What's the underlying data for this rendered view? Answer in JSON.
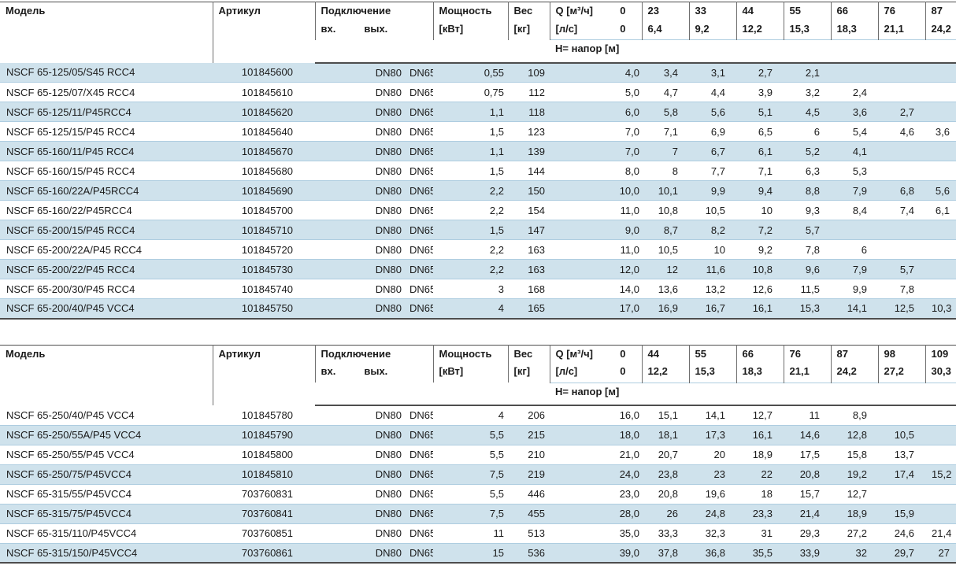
{
  "colors": {
    "row_alt": "#cfe2ec",
    "row_sep": "#aecde0",
    "rule": "#4d4d4d",
    "grid": "#6e6e6e",
    "text": "#1a1a1a"
  },
  "tables": [
    {
      "headers": {
        "model": "Модель",
        "article": "Артикул",
        "connection": "Подключение",
        "inlet": "вх.",
        "outlet": "вых.",
        "power_line1": "Мощность",
        "power_line2": "[кВт]",
        "weight_line1": "Вес",
        "weight_line2": "[кг]",
        "q_label": "Q [м³/ч]",
        "q_zero": "0",
        "ls_label": "[л/с]",
        "ls_zero": "0",
        "head_row_label": "H= напор [м]",
        "q_values": [
          "23",
          "33",
          "44",
          "55",
          "66",
          "76",
          "87"
        ],
        "ls_values": [
          "6,4",
          "9,2",
          "12,2",
          "15,3",
          "18,3",
          "21,1",
          "24,2"
        ]
      },
      "rows": [
        {
          "model": "NSCF 65-125/05/S45 RCC4",
          "article": "101845600",
          "inlet": "DN80",
          "outlet": "DN65",
          "power": "0,55",
          "weight": "109",
          "h": [
            "4,0",
            "3,4",
            "3,1",
            "2,7",
            "2,1",
            "",
            "",
            ""
          ]
        },
        {
          "model": "NSCF 65-125/07/X45 RCC4",
          "article": "101845610",
          "inlet": "DN80",
          "outlet": "DN65",
          "power": "0,75",
          "weight": "112",
          "h": [
            "5,0",
            "4,7",
            "4,4",
            "3,9",
            "3,2",
            "2,4",
            "",
            ""
          ]
        },
        {
          "model": "NSCF 65-125/11/P45RCC4",
          "article": "101845620",
          "inlet": "DN80",
          "outlet": "DN65",
          "power": "1,1",
          "weight": "118",
          "h": [
            "6,0",
            "5,8",
            "5,6",
            "5,1",
            "4,5",
            "3,6",
            "2,7",
            ""
          ]
        },
        {
          "model": "NSCF 65-125/15/P45 RCC4",
          "article": "101845640",
          "inlet": "DN80",
          "outlet": "DN65",
          "power": "1,5",
          "weight": "123",
          "h": [
            "7,0",
            "7,1",
            "6,9",
            "6,5",
            "6",
            "5,4",
            "4,6",
            "3,6"
          ]
        },
        {
          "model": "NSCF 65-160/11/P45 RCC4",
          "article": "101845670",
          "inlet": "DN80",
          "outlet": "DN65",
          "power": "1,1",
          "weight": "139",
          "h": [
            "7,0",
            "7",
            "6,7",
            "6,1",
            "5,2",
            "4,1",
            "",
            ""
          ]
        },
        {
          "model": "NSCF 65-160/15/P45 RCC4",
          "article": "101845680",
          "inlet": "DN80",
          "outlet": "DN65",
          "power": "1,5",
          "weight": "144",
          "h": [
            "8,0",
            "8",
            "7,7",
            "7,1",
            "6,3",
            "5,3",
            "",
            ""
          ]
        },
        {
          "model": "NSCF 65-160/22A/P45RCC4",
          "article": "101845690",
          "inlet": "DN80",
          "outlet": "DN65",
          "power": "2,2",
          "weight": "150",
          "h": [
            "10,0",
            "10,1",
            "9,9",
            "9,4",
            "8,8",
            "7,9",
            "6,8",
            "5,6"
          ]
        },
        {
          "model": "NSCF 65-160/22/P45RCC4",
          "article": "101845700",
          "inlet": "DN80",
          "outlet": "DN65",
          "power": "2,2",
          "weight": "154",
          "h": [
            "11,0",
            "10,8",
            "10,5",
            "10",
            "9,3",
            "8,4",
            "7,4",
            "6,1"
          ]
        },
        {
          "model": "NSCF 65-200/15/P45 RCC4",
          "article": "101845710",
          "inlet": "DN80",
          "outlet": "DN65",
          "power": "1,5",
          "weight": "147",
          "h": [
            "9,0",
            "8,7",
            "8,2",
            "7,2",
            "5,7",
            "",
            "",
            ""
          ]
        },
        {
          "model": "NSCF 65-200/22A/P45 RCC4",
          "article": "101845720",
          "inlet": "DN80",
          "outlet": "DN65",
          "power": "2,2",
          "weight": "163",
          "h": [
            "11,0",
            "10,5",
            "10",
            "9,2",
            "7,8",
            "6",
            "",
            ""
          ]
        },
        {
          "model": "NSCF 65-200/22/P45 RCC4",
          "article": "101845730",
          "inlet": "DN80",
          "outlet": "DN65",
          "power": "2,2",
          "weight": "163",
          "h": [
            "12,0",
            "12",
            "11,6",
            "10,8",
            "9,6",
            "7,9",
            "5,7",
            ""
          ]
        },
        {
          "model": "NSCF 65-200/30/P45 RCC4",
          "article": "101845740",
          "inlet": "DN80",
          "outlet": "DN65",
          "power": "3",
          "weight": "168",
          "h": [
            "14,0",
            "13,6",
            "13,2",
            "12,6",
            "11,5",
            "9,9",
            "7,8",
            ""
          ]
        },
        {
          "model": "NSCF 65-200/40/P45 VCC4",
          "article": "101845750",
          "inlet": "DN80",
          "outlet": "DN65",
          "power": "4",
          "weight": "165",
          "h": [
            "17,0",
            "16,9",
            "16,7",
            "16,1",
            "15,3",
            "14,1",
            "12,5",
            "10,3"
          ]
        }
      ]
    },
    {
      "headers": {
        "model": "Модель",
        "article": "Артикул",
        "connection": "Подключение",
        "inlet": "вх.",
        "outlet": "вых.",
        "power_line1": "Мощность",
        "power_line2": "[кВт]",
        "weight_line1": "Вес",
        "weight_line2": "[кг]",
        "q_label": "Q [м³/ч]",
        "q_zero": "0",
        "ls_label": "[л/с]",
        "ls_zero": "0",
        "head_row_label": "H= напор [м]",
        "q_values": [
          "44",
          "55",
          "66",
          "76",
          "87",
          "98",
          "109"
        ],
        "ls_values": [
          "12,2",
          "15,3",
          "18,3",
          "21,1",
          "24,2",
          "27,2",
          "30,3"
        ]
      },
      "rows": [
        {
          "model": "NSCF 65-250/40/P45 VCC4",
          "article": "101845780",
          "inlet": "DN80",
          "outlet": "DN65",
          "power": "4",
          "weight": "206",
          "h": [
            "16,0",
            "15,1",
            "14,1",
            "12,7",
            "11",
            "8,9",
            "",
            ""
          ]
        },
        {
          "model": "NSCF 65-250/55A/P45 VCC4",
          "article": "101845790",
          "inlet": "DN80",
          "outlet": "DN65",
          "power": "5,5",
          "weight": "215",
          "h": [
            "18,0",
            "18,1",
            "17,3",
            "16,1",
            "14,6",
            "12,8",
            "10,5",
            ""
          ]
        },
        {
          "model": "NSCF 65-250/55/P45 VCC4",
          "article": "101845800",
          "inlet": "DN80",
          "outlet": "DN65",
          "power": "5,5",
          "weight": "210",
          "h": [
            "21,0",
            "20,7",
            "20",
            "18,9",
            "17,5",
            "15,8",
            "13,7",
            ""
          ]
        },
        {
          "model": "NSCF 65-250/75/P45VCC4",
          "article": "101845810",
          "inlet": "DN80",
          "outlet": "DN65",
          "power": "7,5",
          "weight": "219",
          "h": [
            "24,0",
            "23,8",
            "23",
            "22",
            "20,8",
            "19,2",
            "17,4",
            "15,2"
          ]
        },
        {
          "model": "NSCF 65-315/55/P45VCC4",
          "article": "703760831",
          "inlet": "DN80",
          "outlet": "DN65",
          "power": "5,5",
          "weight": "446",
          "h": [
            "23,0",
            "20,8",
            "19,6",
            "18",
            "15,7",
            "12,7",
            "",
            ""
          ]
        },
        {
          "model": "NSCF 65-315/75/P45VCC4",
          "article": "703760841",
          "inlet": "DN80",
          "outlet": "DN65",
          "power": "7,5",
          "weight": "455",
          "h": [
            "28,0",
            "26",
            "24,8",
            "23,3",
            "21,4",
            "18,9",
            "15,9",
            ""
          ]
        },
        {
          "model": "NSCF 65-315/110/P45VCC4",
          "article": "703760851",
          "inlet": "DN80",
          "outlet": "DN65",
          "power": "11",
          "weight": "513",
          "h": [
            "35,0",
            "33,3",
            "32,3",
            "31",
            "29,3",
            "27,2",
            "24,6",
            "21,4"
          ]
        },
        {
          "model": "NSCF 65-315/150/P45VCC4",
          "article": "703760861",
          "inlet": "DN80",
          "outlet": "DN65",
          "power": "15",
          "weight": "536",
          "h": [
            "39,0",
            "37,8",
            "36,8",
            "35,5",
            "33,9",
            "32",
            "29,7",
            "27"
          ]
        }
      ]
    }
  ]
}
